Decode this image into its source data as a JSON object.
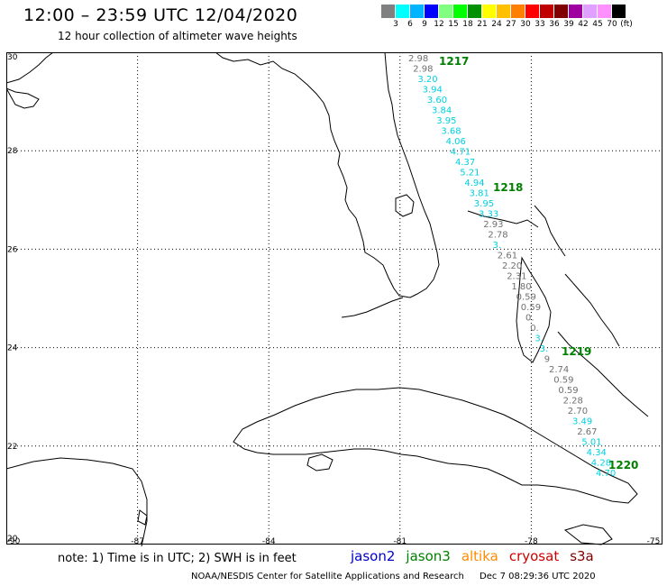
{
  "title": "12:00 – 23:59 UTC 12/04/2020",
  "subtitle": "12 hour collection of altimeter wave heights",
  "legend": {
    "colors": [
      "#808080",
      "#00ffff",
      "#00b4ff",
      "#0000ff",
      "#80ff80",
      "#00ff00",
      "#009000",
      "#ffff00",
      "#ffc000",
      "#ff8000",
      "#ff0000",
      "#c00000",
      "#800000",
      "#a000a0",
      "#e0a0ff",
      "#ff90ff",
      "#000000"
    ],
    "labels": [
      "3",
      "6",
      "9",
      "12",
      "15",
      "18",
      "21",
      "24",
      "27",
      "30",
      "33",
      "36",
      "39",
      "42",
      "45",
      "70",
      "(ft)"
    ]
  },
  "axes": {
    "lat_labels": [
      "30",
      "28",
      "26",
      "24",
      "22",
      "20"
    ],
    "lon_labels": [
      "-90",
      "-87",
      "-84",
      "-81",
      "-78",
      "-75"
    ]
  },
  "passes": [
    "1217",
    "1218",
    "1219",
    "1220"
  ],
  "wave_readings": [
    {
      "v": "2.98",
      "c": "gray"
    },
    {
      "v": "2.98",
      "c": "gray"
    },
    {
      "v": "3.20",
      "c": "cyan"
    },
    {
      "v": "3.94",
      "c": "cyan"
    },
    {
      "v": "3.60",
      "c": "cyan"
    },
    {
      "v": "3.84",
      "c": "cyan"
    },
    {
      "v": "3.95",
      "c": "cyan"
    },
    {
      "v": "3.68",
      "c": "cyan"
    },
    {
      "v": "4.06",
      "c": "cyan"
    },
    {
      "v": "4.71",
      "c": "cyan"
    },
    {
      "v": "4.37",
      "c": "cyan"
    },
    {
      "v": "5.21",
      "c": "cyan"
    },
    {
      "v": "4.94",
      "c": "cyan"
    },
    {
      "v": "3.81",
      "c": "cyan"
    },
    {
      "v": "3.95",
      "c": "cyan"
    },
    {
      "v": "3.33",
      "c": "cyan"
    },
    {
      "v": "2.93",
      "c": "gray"
    },
    {
      "v": "2.78",
      "c": "gray"
    },
    {
      "v": "3.",
      "c": "cyan"
    },
    {
      "v": "2.61",
      "c": "gray"
    },
    {
      "v": "2.20",
      "c": "gray"
    },
    {
      "v": "2.31",
      "c": "gray"
    },
    {
      "v": "1.80",
      "c": "gray"
    },
    {
      "v": "0.59",
      "c": "gray"
    },
    {
      "v": "0.59",
      "c": "gray"
    },
    {
      "v": "0.",
      "c": "gray"
    },
    {
      "v": "0.",
      "c": "gray"
    },
    {
      "v": "3.",
      "c": "cyan"
    },
    {
      "v": "3.",
      "c": "cyan"
    },
    {
      "v": "9",
      "c": "gray"
    },
    {
      "v": "2.74",
      "c": "gray"
    },
    {
      "v": "0.59",
      "c": "gray"
    },
    {
      "v": "0.59",
      "c": "gray"
    },
    {
      "v": "2.28",
      "c": "gray"
    },
    {
      "v": "2.70",
      "c": "gray"
    },
    {
      "v": "3.49",
      "c": "cyan"
    },
    {
      "v": "2.67",
      "c": "gray"
    },
    {
      "v": "5.01",
      "c": "cyan"
    },
    {
      "v": "4.34",
      "c": "cyan"
    },
    {
      "v": "4.28",
      "c": "cyan"
    },
    {
      "v": "4.70",
      "c": "cyan"
    }
  ],
  "note": "note: 1) Time is in UTC; 2) SWH is in feet",
  "missions": [
    {
      "name": "jason2",
      "color": "#0000cc"
    },
    {
      "name": "jason3",
      "color": "#008000"
    },
    {
      "name": "altika",
      "color": "#ff8c00"
    },
    {
      "name": "cryosat",
      "color": "#cc0000"
    },
    {
      "name": "s3a",
      "color": "#800000"
    }
  ],
  "credit": "NOAA/NESDIS Center for Satellite Applications and Research",
  "timestamp": "Dec  7 08:29:36 UTC 2020"
}
